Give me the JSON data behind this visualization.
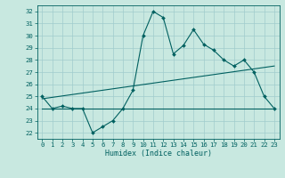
{
  "xlabel": "Humidex (Indice chaleur)",
  "bg_color": "#c8e8e0",
  "line_color": "#006060",
  "grid_color": "#a0cccc",
  "xlim": [
    -0.5,
    23.5
  ],
  "ylim": [
    21.5,
    32.5
  ],
  "yticks": [
    22,
    23,
    24,
    25,
    26,
    27,
    28,
    29,
    30,
    31,
    32
  ],
  "xticks": [
    0,
    1,
    2,
    3,
    4,
    5,
    6,
    7,
    8,
    9,
    10,
    11,
    12,
    13,
    14,
    15,
    16,
    17,
    18,
    19,
    20,
    21,
    22,
    23
  ],
  "line1_x": [
    0,
    1,
    2,
    3,
    4,
    5,
    6,
    7,
    8,
    9,
    10,
    11,
    12,
    13,
    14,
    15,
    16,
    17,
    18,
    19,
    20,
    21,
    22,
    23
  ],
  "line1_y": [
    25.0,
    24.0,
    24.2,
    24.0,
    24.0,
    22.0,
    22.5,
    23.0,
    24.0,
    25.5,
    30.0,
    32.0,
    31.5,
    28.5,
    29.2,
    30.5,
    29.3,
    28.8,
    28.0,
    27.5,
    28.0,
    27.0,
    25.0,
    24.0
  ],
  "line2_x": [
    0,
    23
  ],
  "line2_y": [
    24.8,
    27.5
  ],
  "line3_x": [
    0,
    23
  ],
  "line3_y": [
    24.0,
    24.0
  ],
  "tick_fontsize": 5.2,
  "xlabel_fontsize": 6.0
}
